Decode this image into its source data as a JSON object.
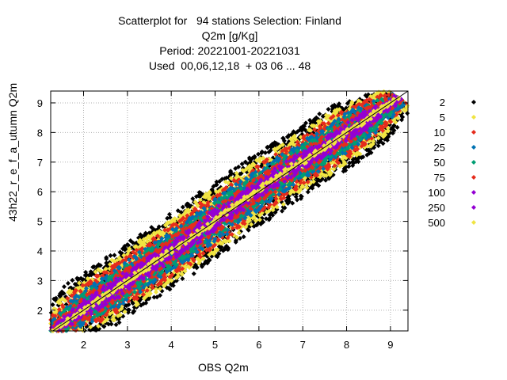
{
  "chart_data": {
    "type": "scatter",
    "title_lines": [
      "Scatterplot for   94 stations Selection: Finland",
      "Q2m [g/Kg]",
      "Period: 20221001-20221031",
      "Used  00,06,12,18  + 03 06 ... 48"
    ],
    "xlabel": "OBS Q2m",
    "ylabel": "43h22_ref_autumn Q2m",
    "ylabel_display": "43h22_r_e_f_a_utumn Q2m",
    "xlim": [
      1.25,
      9.4
    ],
    "ylim": [
      1.3,
      9.4
    ],
    "xticks": [
      2,
      3,
      4,
      5,
      6,
      7,
      8,
      9
    ],
    "yticks": [
      2,
      3,
      4,
      5,
      6,
      7,
      8,
      9
    ],
    "grid": true,
    "legend_placement": "right",
    "diagonal_line": true,
    "series": [
      {
        "name": "2",
        "color": "#000000",
        "marker": "diamond"
      },
      {
        "name": "5",
        "color": "#f0e442",
        "marker": "diamond"
      },
      {
        "name": "10",
        "color": "#e52c1c",
        "marker": "diamond"
      },
      {
        "name": "25",
        "color": "#0072b2",
        "marker": "diamond"
      },
      {
        "name": "50",
        "color": "#009e73",
        "marker": "diamond"
      },
      {
        "name": "75",
        "color": "#e52c1c",
        "marker": "diamond"
      },
      {
        "name": "100",
        "color": "#9400d3",
        "marker": "diamond"
      },
      {
        "name": "250",
        "color": "#9400d3",
        "marker": "diamond"
      },
      {
        "name": "500",
        "color": "#f0e442",
        "marker": "diamond"
      }
    ],
    "density_bands": [
      {
        "series": "2",
        "halfwidth": 1.15
      },
      {
        "series": "5",
        "halfwidth": 0.95
      },
      {
        "series": "10",
        "halfwidth": 0.78
      },
      {
        "series": "25",
        "halfwidth": 0.62
      },
      {
        "series": "50",
        "halfwidth": 0.5
      },
      {
        "series": "75",
        "halfwidth": 0.4
      },
      {
        "series": "100",
        "halfwidth": 0.3
      },
      {
        "series": "250",
        "halfwidth": 0.22
      },
      {
        "series": "500",
        "halfwidth": 0.08
      }
    ]
  }
}
